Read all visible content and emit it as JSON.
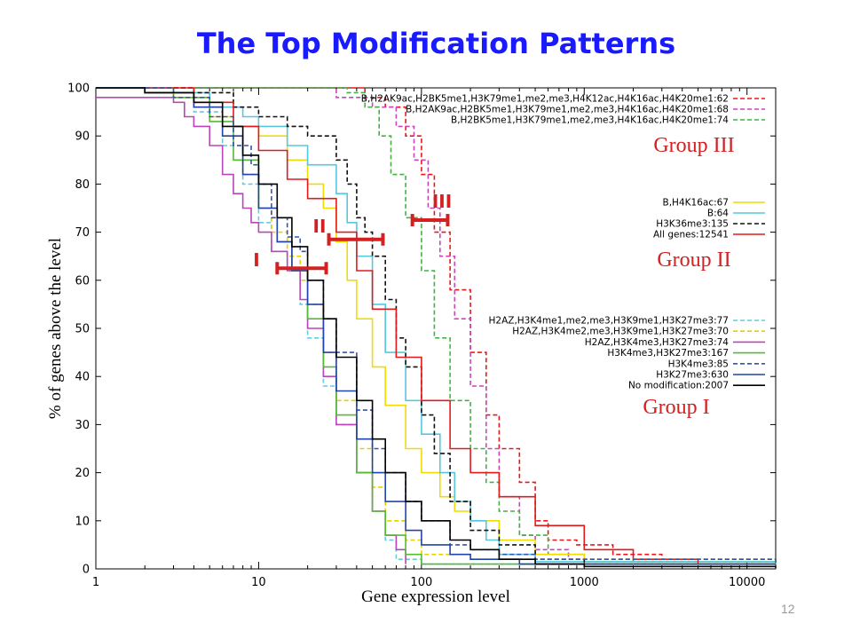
{
  "slide": {
    "title": "The Top Modification Patterns",
    "page_number": "12"
  },
  "chart_data": {
    "type": "line",
    "xlabel": "Gene expression level",
    "ylabel": "% of genes above the level",
    "xscale": "log",
    "xlim": [
      1,
      15000
    ],
    "ylim": [
      0,
      100
    ],
    "x_ticks": [
      "1",
      "10",
      "100",
      "1000",
      "10000"
    ],
    "y_ticks": [
      "0",
      "10",
      "20",
      "30",
      "40",
      "50",
      "60",
      "70",
      "80",
      "90",
      "100"
    ],
    "grid": false,
    "legend_placement": "right",
    "group_labels": [
      "Group III",
      "Group II",
      "Group I"
    ],
    "range_markers": [
      {
        "label": "I",
        "x_start": 13,
        "x_end": 26,
        "y": 62.5
      },
      {
        "label": "II",
        "x_start": 27,
        "x_end": 58,
        "y": 68.5
      },
      {
        "label": "III",
        "x_start": 88,
        "x_end": 145,
        "y": 72.5
      }
    ],
    "series": [
      {
        "name": "B,H2AK9ac,H2BK5me1,H3K79me1,me2,me3,H4K12ac,H4K16ac,H4K20me1:62",
        "group": "III",
        "color": "#e31a1c",
        "dash": true,
        "points": [
          [
            1,
            100
          ],
          [
            30,
            100
          ],
          [
            45,
            98
          ],
          [
            60,
            96
          ],
          [
            80,
            90
          ],
          [
            100,
            82
          ],
          [
            120,
            70
          ],
          [
            150,
            58
          ],
          [
            200,
            45
          ],
          [
            250,
            32
          ],
          [
            300,
            25
          ],
          [
            400,
            18
          ],
          [
            500,
            10
          ],
          [
            600,
            6
          ],
          [
            900,
            5
          ],
          [
            1500,
            3
          ],
          [
            3000,
            2
          ],
          [
            5000,
            2
          ],
          [
            8000,
            2
          ],
          [
            15000,
            1.5
          ]
        ]
      },
      {
        "name": "B,H2AK9ac,H2BK5me1,H3K79me1,me2,me3,H4K16ac,H4K20me1:68",
        "group": "III",
        "color": "#cc44bb",
        "dash": true,
        "points": [
          [
            1,
            100
          ],
          [
            20,
            100
          ],
          [
            30,
            98
          ],
          [
            50,
            96
          ],
          [
            70,
            92
          ],
          [
            90,
            85
          ],
          [
            110,
            75
          ],
          [
            130,
            65
          ],
          [
            160,
            52
          ],
          [
            200,
            38
          ],
          [
            250,
            25
          ],
          [
            300,
            15
          ],
          [
            400,
            7
          ],
          [
            500,
            4
          ],
          [
            800,
            2
          ],
          [
            2000,
            1.5
          ],
          [
            15000,
            1.5
          ]
        ]
      },
      {
        "name": "B,H2BK5me1,H3K79me1,me2,me3,H4K16ac,H4K20me1:74",
        "group": "III",
        "color": "#44b044",
        "dash": true,
        "points": [
          [
            1,
            100
          ],
          [
            20,
            100
          ],
          [
            35,
            99
          ],
          [
            45,
            96
          ],
          [
            55,
            90
          ],
          [
            65,
            82
          ],
          [
            80,
            73
          ],
          [
            100,
            62
          ],
          [
            120,
            48
          ],
          [
            150,
            35
          ],
          [
            200,
            25
          ],
          [
            250,
            18
          ],
          [
            300,
            12
          ],
          [
            400,
            7
          ],
          [
            600,
            3
          ],
          [
            1000,
            1.5
          ],
          [
            5000,
            1
          ],
          [
            15000,
            1
          ]
        ]
      },
      {
        "name": "B,H4K16ac:67",
        "group": "II",
        "color": "#f0dc00",
        "dash": false,
        "points": [
          [
            1,
            100
          ],
          [
            3,
            98
          ],
          [
            5,
            94
          ],
          [
            7,
            92
          ],
          [
            10,
            90
          ],
          [
            15,
            85
          ],
          [
            20,
            80
          ],
          [
            25,
            75
          ],
          [
            30,
            68
          ],
          [
            35,
            60
          ],
          [
            40,
            52
          ],
          [
            50,
            42
          ],
          [
            60,
            34
          ],
          [
            80,
            25
          ],
          [
            100,
            20
          ],
          [
            130,
            15
          ],
          [
            160,
            12
          ],
          [
            200,
            10
          ],
          [
            300,
            6
          ],
          [
            500,
            3
          ],
          [
            1000,
            1.5
          ],
          [
            15000,
            1
          ]
        ]
      },
      {
        "name": "B:64",
        "group": "II",
        "color": "#55c8e0",
        "dash": false,
        "points": [
          [
            1,
            100
          ],
          [
            3,
            99
          ],
          [
            5,
            96
          ],
          [
            8,
            94
          ],
          [
            10,
            92
          ],
          [
            15,
            88
          ],
          [
            20,
            84
          ],
          [
            30,
            78
          ],
          [
            35,
            72
          ],
          [
            40,
            65
          ],
          [
            50,
            55
          ],
          [
            60,
            45
          ],
          [
            80,
            35
          ],
          [
            100,
            28
          ],
          [
            130,
            20
          ],
          [
            160,
            14
          ],
          [
            200,
            10
          ],
          [
            250,
            6
          ],
          [
            300,
            3
          ],
          [
            500,
            1.5
          ],
          [
            15000,
            1
          ]
        ]
      },
      {
        "name": "H3K36me3:135",
        "group": "II",
        "color": "#111111",
        "dash": true,
        "points": [
          [
            1,
            100
          ],
          [
            4,
            99
          ],
          [
            7,
            96
          ],
          [
            10,
            94
          ],
          [
            15,
            92
          ],
          [
            20,
            90
          ],
          [
            30,
            85
          ],
          [
            35,
            80
          ],
          [
            40,
            73
          ],
          [
            45,
            70
          ],
          [
            50,
            65
          ],
          [
            60,
            56
          ],
          [
            70,
            48
          ],
          [
            80,
            42
          ],
          [
            100,
            32
          ],
          [
            120,
            24
          ],
          [
            150,
            14
          ],
          [
            200,
            8
          ],
          [
            300,
            5
          ],
          [
            500,
            2
          ],
          [
            1000,
            1
          ],
          [
            15000,
            1
          ]
        ]
      },
      {
        "name": "All genes:12541",
        "group": "II",
        "color": "#e31a1c",
        "dash": false,
        "points": [
          [
            1,
            100
          ],
          [
            4,
            97
          ],
          [
            7,
            92
          ],
          [
            10,
            87
          ],
          [
            15,
            81
          ],
          [
            20,
            77
          ],
          [
            30,
            70
          ],
          [
            40,
            62
          ],
          [
            50,
            54
          ],
          [
            70,
            44
          ],
          [
            100,
            35
          ],
          [
            150,
            25
          ],
          [
            200,
            20
          ],
          [
            300,
            15
          ],
          [
            500,
            9
          ],
          [
            1000,
            4
          ],
          [
            2000,
            2
          ],
          [
            5000,
            1
          ],
          [
            15000,
            1
          ]
        ]
      },
      {
        "name": "H2AZ,H3K4me1,me2,me3,H3K9me1,H3K27me3:77",
        "group": "I",
        "color": "#66ccdd",
        "dash": true,
        "points": [
          [
            1,
            100
          ],
          [
            2,
            99
          ],
          [
            4,
            95
          ],
          [
            6,
            88
          ],
          [
            8,
            80
          ],
          [
            10,
            72
          ],
          [
            12,
            66
          ],
          [
            15,
            62
          ],
          [
            18,
            55
          ],
          [
            20,
            48
          ],
          [
            25,
            38
          ],
          [
            30,
            30
          ],
          [
            40,
            20
          ],
          [
            50,
            12
          ],
          [
            60,
            6
          ],
          [
            70,
            2
          ],
          [
            100,
            1
          ],
          [
            15000,
            1
          ]
        ]
      },
      {
        "name": "H2AZ,H3K4me2,me3,H3K9me1,H3K27me3:70",
        "group": "I",
        "color": "#e6d000",
        "dash": true,
        "points": [
          [
            1,
            100
          ],
          [
            2,
            99
          ],
          [
            4,
            96
          ],
          [
            6,
            90
          ],
          [
            8,
            82
          ],
          [
            10,
            75
          ],
          [
            12,
            70
          ],
          [
            15,
            65
          ],
          [
            18,
            60
          ],
          [
            20,
            55
          ],
          [
            25,
            45
          ],
          [
            30,
            35
          ],
          [
            40,
            25
          ],
          [
            50,
            17
          ],
          [
            60,
            10
          ],
          [
            80,
            6
          ],
          [
            100,
            3
          ],
          [
            200,
            2
          ],
          [
            15000,
            1
          ]
        ]
      },
      {
        "name": "H2AZ,H3K4me3,H3K27me3:74",
        "group": "I",
        "color": "#bb44bb",
        "dash": false,
        "points": [
          [
            1,
            98
          ],
          [
            1.5,
            98
          ],
          [
            2,
            98
          ],
          [
            3,
            97
          ],
          [
            3.5,
            94
          ],
          [
            4,
            92
          ],
          [
            5,
            88
          ],
          [
            6,
            82
          ],
          [
            7,
            78
          ],
          [
            8,
            75
          ],
          [
            9,
            72
          ],
          [
            10,
            70
          ],
          [
            12,
            66
          ],
          [
            15,
            62
          ],
          [
            18,
            56
          ],
          [
            20,
            50
          ],
          [
            25,
            40
          ],
          [
            30,
            30
          ],
          [
            40,
            20
          ],
          [
            50,
            12
          ],
          [
            60,
            7
          ],
          [
            70,
            4
          ],
          [
            80,
            1
          ]
        ]
      },
      {
        "name": "H3K4me3,H3K27me3:167",
        "group": "I",
        "color": "#55bb33",
        "dash": false,
        "points": [
          [
            1,
            100
          ],
          [
            2,
            99
          ],
          [
            3,
            98
          ],
          [
            5,
            93
          ],
          [
            7,
            85
          ],
          [
            10,
            75
          ],
          [
            13,
            68
          ],
          [
            16,
            62
          ],
          [
            20,
            52
          ],
          [
            25,
            42
          ],
          [
            30,
            32
          ],
          [
            40,
            20
          ],
          [
            50,
            12
          ],
          [
            60,
            7
          ],
          [
            80,
            3
          ],
          [
            100,
            1
          ],
          [
            15000,
            1
          ]
        ]
      },
      {
        "name": "H3K4me3:85",
        "group": "I",
        "color": "#3355aa",
        "dash": true,
        "points": [
          [
            1,
            100
          ],
          [
            3,
            98
          ],
          [
            5,
            94
          ],
          [
            7,
            88
          ],
          [
            9,
            84
          ],
          [
            10,
            80
          ],
          [
            12,
            73
          ],
          [
            15,
            69
          ],
          [
            18,
            66
          ],
          [
            20,
            60
          ],
          [
            25,
            52
          ],
          [
            30,
            45
          ],
          [
            40,
            33
          ],
          [
            50,
            25
          ],
          [
            60,
            20
          ],
          [
            80,
            14
          ],
          [
            100,
            10
          ],
          [
            150,
            5
          ],
          [
            200,
            4
          ],
          [
            300,
            3
          ],
          [
            500,
            2
          ],
          [
            15000,
            1
          ]
        ]
      },
      {
        "name": "H3K27me3:630",
        "group": "I",
        "color": "#2244aa",
        "dash": false,
        "points": [
          [
            1,
            100
          ],
          [
            2,
            99
          ],
          [
            4,
            96
          ],
          [
            6,
            90
          ],
          [
            8,
            82
          ],
          [
            10,
            75
          ],
          [
            13,
            68
          ],
          [
            16,
            62
          ],
          [
            20,
            55
          ],
          [
            25,
            45
          ],
          [
            30,
            37
          ],
          [
            40,
            27
          ],
          [
            50,
            20
          ],
          [
            60,
            14
          ],
          [
            80,
            8
          ],
          [
            100,
            5
          ],
          [
            150,
            3
          ],
          [
            200,
            2
          ],
          [
            400,
            1
          ],
          [
            1000,
            1
          ],
          [
            15000,
            1
          ]
        ]
      },
      {
        "name": "No modification:2007",
        "group": "I",
        "color": "#000000",
        "dash": false,
        "points": [
          [
            1,
            100
          ],
          [
            2,
            99
          ],
          [
            4,
            97
          ],
          [
            6,
            92
          ],
          [
            8,
            86
          ],
          [
            10,
            80
          ],
          [
            13,
            73
          ],
          [
            16,
            67
          ],
          [
            20,
            60
          ],
          [
            25,
            52
          ],
          [
            30,
            44
          ],
          [
            40,
            35
          ],
          [
            50,
            27
          ],
          [
            60,
            20
          ],
          [
            80,
            14
          ],
          [
            100,
            10
          ],
          [
            150,
            6
          ],
          [
            200,
            4
          ],
          [
            300,
            2
          ],
          [
            500,
            1
          ],
          [
            1000,
            0.5
          ],
          [
            15000,
            0.2
          ]
        ]
      }
    ]
  }
}
